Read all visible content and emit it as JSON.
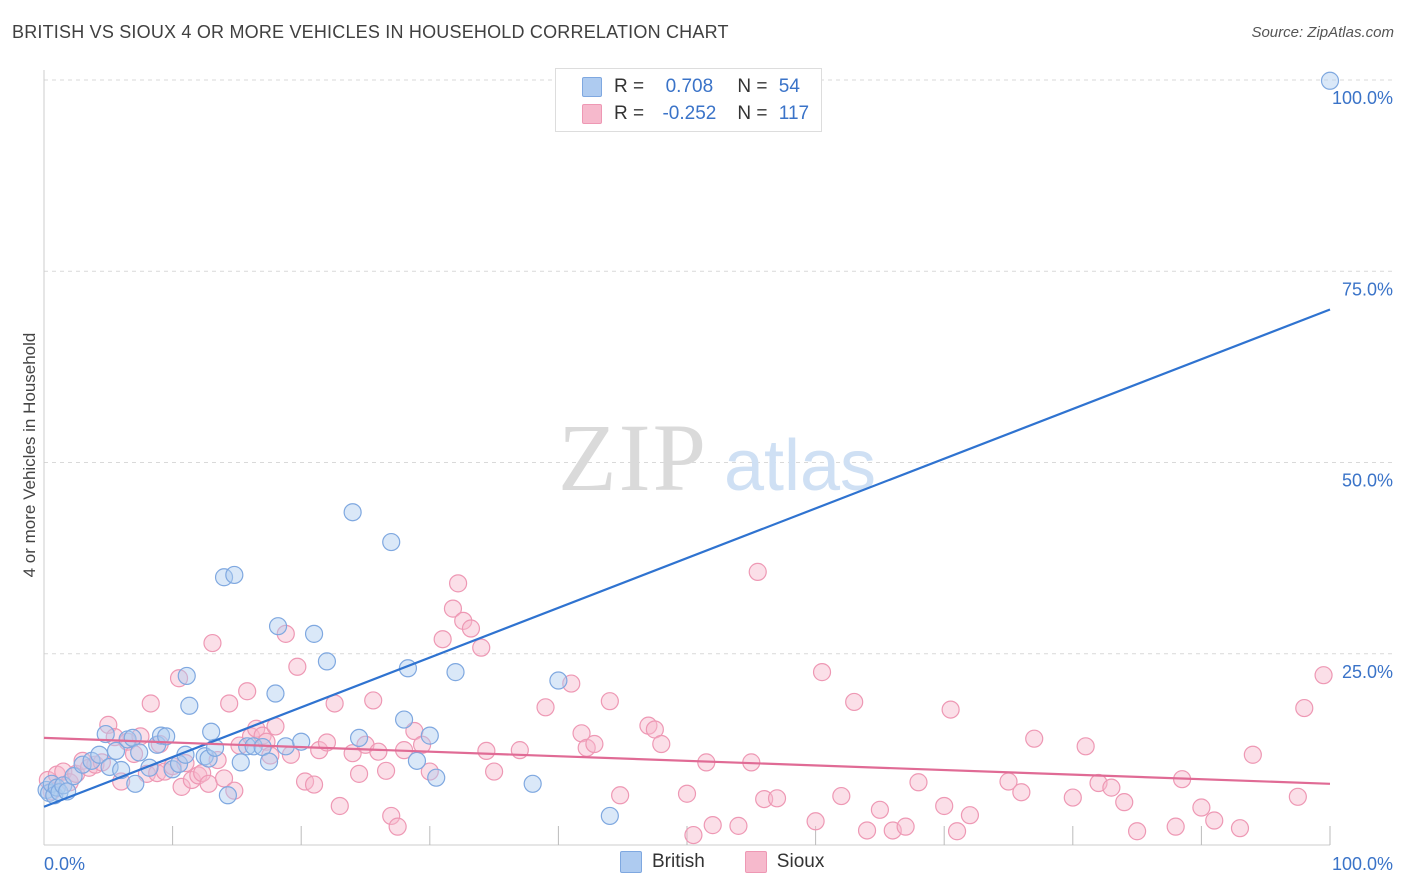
{
  "header": {
    "title": "BRITISH VS SIOUX 4 OR MORE VEHICLES IN HOUSEHOLD CORRELATION CHART",
    "source": "Source: ZipAtlas.com"
  },
  "watermark": {
    "zip": "ZIP",
    "atlas": "atlas"
  },
  "legend": {
    "british": {
      "r_label": "R =",
      "r_value": "0.708",
      "n_label": "N =",
      "n_value": "54"
    },
    "sioux": {
      "r_label": "R =",
      "r_value": "-0.252",
      "n_label": "N =",
      "n_value": "117"
    }
  },
  "colors": {
    "british_fill": "#aecbf0",
    "british_stroke": "#7fa8e0",
    "british_line": "#2f73d0",
    "sioux_fill": "#f6b9cc",
    "sioux_stroke": "#ee98b4",
    "sioux_line": "#e06b95",
    "tick_label": "#3a73c8",
    "grid": "#d9d9d9"
  },
  "chart_data": {
    "type": "scatter",
    "ylabel": "4 or more Vehicles in Household",
    "xlim": [
      0,
      100
    ],
    "ylim": [
      0,
      100
    ],
    "x_tick_labels": [
      "0.0%",
      "100.0%"
    ],
    "y_tick_labels": [
      "100.0%",
      "75.0%",
      "50.0%",
      "25.0%"
    ],
    "y_ticks": [
      100,
      75,
      50,
      25
    ],
    "grid": "horizontal dashed",
    "legend_placement": "top-center",
    "series": [
      {
        "name": "British",
        "trend": [
          [
            0,
            5.0
          ],
          [
            100,
            70.0
          ]
        ],
        "points": [
          [
            0.2,
            7.2
          ],
          [
            0.4,
            6.8
          ],
          [
            0.6,
            8.0
          ],
          [
            0.8,
            6.5
          ],
          [
            1.0,
            7.5
          ],
          [
            1.2,
            6.9
          ],
          [
            1.5,
            7.8
          ],
          [
            1.8,
            7.0
          ],
          [
            2.3,
            9.0
          ],
          [
            3.0,
            10.5
          ],
          [
            3.7,
            11.0
          ],
          [
            4.3,
            11.8
          ],
          [
            4.8,
            14.5
          ],
          [
            5.1,
            10.2
          ],
          [
            5.6,
            12.3
          ],
          [
            6.0,
            9.8
          ],
          [
            6.5,
            13.8
          ],
          [
            6.9,
            14.0
          ],
          [
            7.1,
            8.0
          ],
          [
            7.4,
            12.1
          ],
          [
            8.2,
            10.1
          ],
          [
            8.8,
            13.1
          ],
          [
            9.1,
            14.3
          ],
          [
            9.5,
            14.2
          ],
          [
            10.0,
            9.9
          ],
          [
            10.5,
            10.6
          ],
          [
            11.0,
            11.8
          ],
          [
            11.1,
            22.1
          ],
          [
            11.3,
            18.2
          ],
          [
            12.5,
            11.6
          ],
          [
            12.8,
            11.3
          ],
          [
            13.0,
            14.8
          ],
          [
            13.3,
            12.7
          ],
          [
            14.0,
            35.0
          ],
          [
            14.3,
            6.5
          ],
          [
            14.8,
            35.3
          ],
          [
            15.3,
            10.8
          ],
          [
            15.8,
            12.9
          ],
          [
            16.3,
            12.9
          ],
          [
            17.0,
            12.8
          ],
          [
            17.5,
            10.9
          ],
          [
            18.0,
            19.8
          ],
          [
            18.2,
            28.6
          ],
          [
            18.8,
            12.9
          ],
          [
            20.0,
            13.5
          ],
          [
            21.0,
            27.6
          ],
          [
            22.0,
            24.0
          ],
          [
            24.0,
            43.5
          ],
          [
            24.5,
            14.0
          ],
          [
            27.0,
            39.6
          ],
          [
            28.0,
            16.4
          ],
          [
            28.3,
            23.1
          ],
          [
            29.0,
            11.0
          ],
          [
            30.0,
            14.3
          ],
          [
            30.5,
            8.8
          ],
          [
            32.0,
            22.6
          ],
          [
            38.0,
            8.0
          ],
          [
            40.0,
            21.5
          ],
          [
            44.0,
            3.8
          ],
          [
            100,
            99.9
          ]
        ]
      },
      {
        "name": "Sioux",
        "trend": [
          [
            0,
            14.0
          ],
          [
            100,
            8.0
          ]
        ],
        "points": [
          [
            0.3,
            8.5
          ],
          [
            0.6,
            7.0
          ],
          [
            1.0,
            9.2
          ],
          [
            1.5,
            9.6
          ],
          [
            2.0,
            8.2
          ],
          [
            2.5,
            9.3
          ],
          [
            3.0,
            11.0
          ],
          [
            3.5,
            10.1
          ],
          [
            4.0,
            10.5
          ],
          [
            4.5,
            10.8
          ],
          [
            5.0,
            15.7
          ],
          [
            5.5,
            14.1
          ],
          [
            6.0,
            8.3
          ],
          [
            6.5,
            13.5
          ],
          [
            7.0,
            11.9
          ],
          [
            7.5,
            14.2
          ],
          [
            8.0,
            9.3
          ],
          [
            8.3,
            18.5
          ],
          [
            8.8,
            9.4
          ],
          [
            9.0,
            13.2
          ],
          [
            9.4,
            9.6
          ],
          [
            10.0,
            10.3
          ],
          [
            10.5,
            21.8
          ],
          [
            10.7,
            7.6
          ],
          [
            11.0,
            10.7
          ],
          [
            11.5,
            8.5
          ],
          [
            12.0,
            9.1
          ],
          [
            12.3,
            9.4
          ],
          [
            12.8,
            8.0
          ],
          [
            13.1,
            26.4
          ],
          [
            13.5,
            11.1
          ],
          [
            14.0,
            8.7
          ],
          [
            14.4,
            18.5
          ],
          [
            14.8,
            7.1
          ],
          [
            15.2,
            13.0
          ],
          [
            15.8,
            20.1
          ],
          [
            16.1,
            14.2
          ],
          [
            16.5,
            15.2
          ],
          [
            17.0,
            14.3
          ],
          [
            17.3,
            13.5
          ],
          [
            17.6,
            11.7
          ],
          [
            18.0,
            15.5
          ],
          [
            18.8,
            27.6
          ],
          [
            19.2,
            11.8
          ],
          [
            19.7,
            23.3
          ],
          [
            20.3,
            8.3
          ],
          [
            21.0,
            7.9
          ],
          [
            21.4,
            12.4
          ],
          [
            22.0,
            13.4
          ],
          [
            22.6,
            18.5
          ],
          [
            23.0,
            5.1
          ],
          [
            24.0,
            12.0
          ],
          [
            24.5,
            9.3
          ],
          [
            25.0,
            13.1
          ],
          [
            25.6,
            18.9
          ],
          [
            26.0,
            12.2
          ],
          [
            26.6,
            9.7
          ],
          [
            27.0,
            3.8
          ],
          [
            27.5,
            2.4
          ],
          [
            28.0,
            12.4
          ],
          [
            28.8,
            14.9
          ],
          [
            29.4,
            13.1
          ],
          [
            30.0,
            9.6
          ],
          [
            31.0,
            26.9
          ],
          [
            31.8,
            30.9
          ],
          [
            32.2,
            34.2
          ],
          [
            32.6,
            29.3
          ],
          [
            33.2,
            28.3
          ],
          [
            34.0,
            25.8
          ],
          [
            34.4,
            12.3
          ],
          [
            35.0,
            9.6
          ],
          [
            37.0,
            12.4
          ],
          [
            39.0,
            18.0
          ],
          [
            41.0,
            21.1
          ],
          [
            41.8,
            14.6
          ],
          [
            42.2,
            12.7
          ],
          [
            42.8,
            13.2
          ],
          [
            44.0,
            18.8
          ],
          [
            44.8,
            6.5
          ],
          [
            47.0,
            15.6
          ],
          [
            47.5,
            15.1
          ],
          [
            48.0,
            13.2
          ],
          [
            50.0,
            6.7
          ],
          [
            50.5,
            1.3
          ],
          [
            51.5,
            10.8
          ],
          [
            52.0,
            2.6
          ],
          [
            54.0,
            2.5
          ],
          [
            55.0,
            10.8
          ],
          [
            55.5,
            35.7
          ],
          [
            56.0,
            6.0
          ],
          [
            57.0,
            6.1
          ],
          [
            60.0,
            3.1
          ],
          [
            60.5,
            22.6
          ],
          [
            62.0,
            6.4
          ],
          [
            63.0,
            18.7
          ],
          [
            64.0,
            1.9
          ],
          [
            65.0,
            4.6
          ],
          [
            66.0,
            1.9
          ],
          [
            67.0,
            2.4
          ],
          [
            68.0,
            8.2
          ],
          [
            70.0,
            5.1
          ],
          [
            70.5,
            17.7
          ],
          [
            71.0,
            1.8
          ],
          [
            72.0,
            3.9
          ],
          [
            75.0,
            8.3
          ],
          [
            76.0,
            6.9
          ],
          [
            77.0,
            13.9
          ],
          [
            80.0,
            6.2
          ],
          [
            81.0,
            12.9
          ],
          [
            82.0,
            8.1
          ],
          [
            83.0,
            7.5
          ],
          [
            84.0,
            5.6
          ],
          [
            85.0,
            1.8
          ],
          [
            88.0,
            2.4
          ],
          [
            88.5,
            8.6
          ],
          [
            90.0,
            4.9
          ],
          [
            91.0,
            3.2
          ],
          [
            93.0,
            2.2
          ],
          [
            94.0,
            11.8
          ],
          [
            97.5,
            6.3
          ],
          [
            98.0,
            17.9
          ],
          [
            99.5,
            22.2
          ]
        ]
      }
    ]
  }
}
